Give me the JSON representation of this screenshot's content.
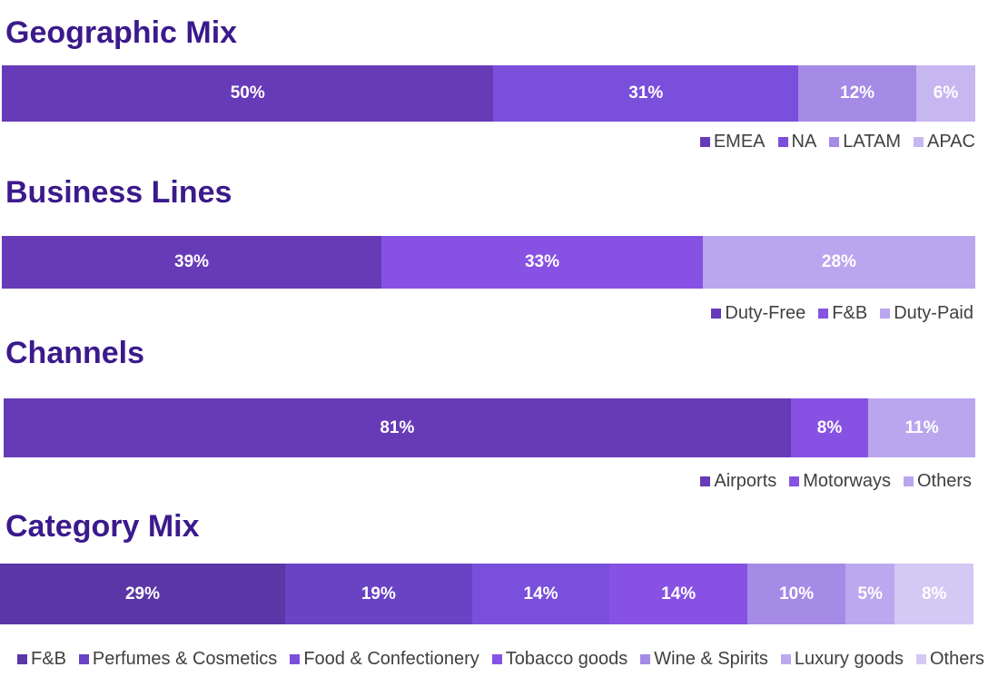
{
  "chart_data": [
    {
      "type": "bar",
      "title": "Geographic Mix",
      "series": [
        {
          "name": "EMEA",
          "value": 50,
          "label": "50%",
          "color": "#673ab7"
        },
        {
          "name": "NA",
          "value": 31,
          "label": "31%",
          "color": "#7a4fdb"
        },
        {
          "name": "LATAM",
          "value": 12,
          "label": "12%",
          "color": "#a58ae6"
        },
        {
          "name": "APAC",
          "value": 6,
          "label": "6%",
          "color": "#c7b7f0"
        }
      ]
    },
    {
      "type": "bar",
      "title": "Business Lines",
      "series": [
        {
          "name": "Duty-Free",
          "value": 39,
          "label": "39%",
          "color": "#673ab7"
        },
        {
          "name": "F&B",
          "value": 33,
          "label": "33%",
          "color": "#8752e3"
        },
        {
          "name": "Duty-Paid",
          "value": 28,
          "label": "28%",
          "color": "#b9a6ee"
        }
      ]
    },
    {
      "type": "bar",
      "title": "Channels",
      "series": [
        {
          "name": "Airports",
          "value": 81,
          "label": "81%",
          "color": "#673ab7"
        },
        {
          "name": "Motorways",
          "value": 8,
          "label": "8%",
          "color": "#8752e3"
        },
        {
          "name": "Others",
          "value": 11,
          "label": "11%",
          "color": "#b9a6ee"
        }
      ]
    },
    {
      "type": "bar",
      "title": "Category Mix",
      "series": [
        {
          "name": "F&B",
          "value": 29,
          "label": "29%",
          "color": "#5b36a6"
        },
        {
          "name": "Perfumes & Cosmetics",
          "value": 19,
          "label": "19%",
          "color": "#6a43c4"
        },
        {
          "name": "Food & Confectionery",
          "value": 14,
          "label": "14%",
          "color": "#7a4fdb"
        },
        {
          "name": "Tobacco goods",
          "value": 14,
          "label": "14%",
          "color": "#8752e3"
        },
        {
          "name": "Wine & Spirits",
          "value": 10,
          "label": "10%",
          "color": "#a58ae6"
        },
        {
          "name": "Luxury goods",
          "value": 5,
          "label": "5%",
          "color": "#bba8ef"
        },
        {
          "name": "Others",
          "value": 8,
          "label": "8%",
          "color": "#d4c8f4"
        }
      ]
    }
  ]
}
